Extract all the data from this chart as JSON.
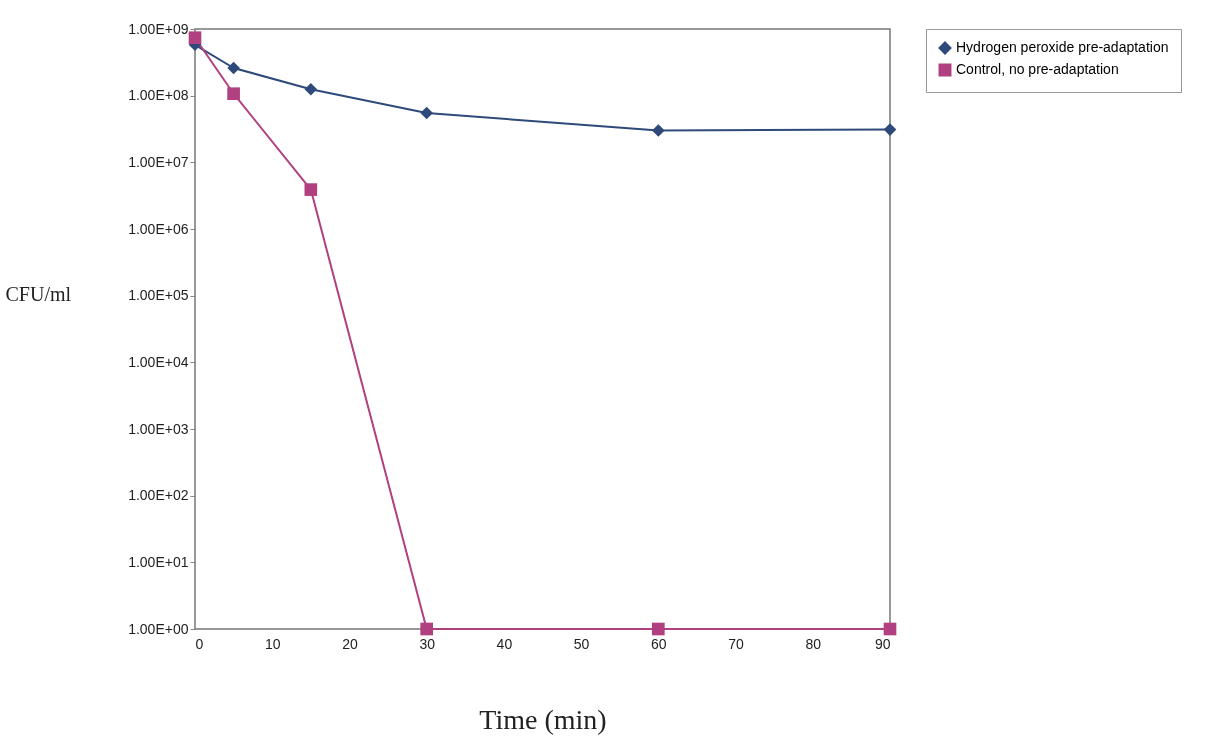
{
  "chart_data": {
    "type": "line",
    "xlabel": "Time (min)",
    "ylabel": "CFU/ml",
    "x": [
      0,
      5,
      15,
      30,
      60,
      90
    ],
    "series": [
      {
        "name": "Hydrogen peroxide pre-adaptation",
        "color": "#2e4a7a",
        "marker": "diamond",
        "values": [
          580000000,
          260000000,
          125000000,
          55000000,
          30000000,
          31000000
        ]
      },
      {
        "name": "Control, no pre-adaptation",
        "color": "#b0407f",
        "marker": "square",
        "values": [
          740000000,
          107000000,
          3900000,
          1,
          1,
          1
        ]
      }
    ],
    "log": "y",
    "xlim": [
      0,
      90
    ],
    "xticks": [
      0,
      10,
      20,
      30,
      40,
      50,
      60,
      70,
      80,
      90
    ],
    "ylim": [
      1,
      1000000000
    ],
    "yticks": [
      {
        "value": 1,
        "label": "1.00E+00"
      },
      {
        "value": 10,
        "label": "1.00E+01"
      },
      {
        "value": 100,
        "label": "1.00E+02"
      },
      {
        "value": 1000,
        "label": "1.00E+03"
      },
      {
        "value": 10000,
        "label": "1.00E+04"
      },
      {
        "value": 100000,
        "label": "1.00E+05"
      },
      {
        "value": 1000000,
        "label": "1.00E+06"
      },
      {
        "value": 10000000,
        "label": "1.00E+07"
      },
      {
        "value": 100000000,
        "label": "1.00E+08"
      },
      {
        "value": 1000000000,
        "label": "1.00E+09"
      }
    ],
    "grid": false,
    "legend": "right"
  }
}
